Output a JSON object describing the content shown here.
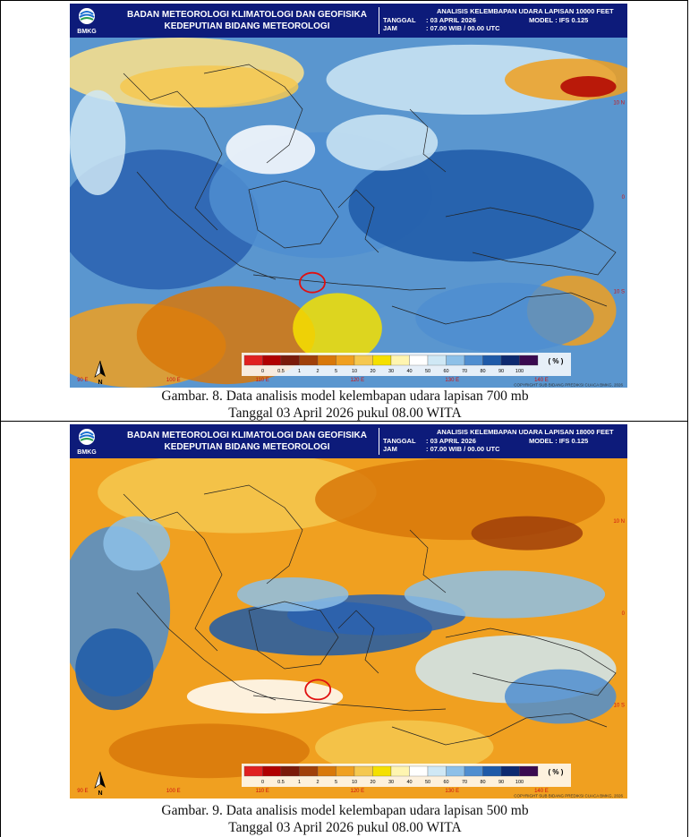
{
  "panels": [
    {
      "agency_line1": "BADAN METEOROLOGI KLIMATOLOGI DAN GEOFISIKA",
      "agency_line2": "KEDEPUTIAN BIDANG METEOROLOGI",
      "logo_text": "BMKG",
      "product": "ANALISIS KELEMBAPAN UDARA LAPISAN 10000 FEET",
      "date_label": "TANGGAL",
      "date_value": ": 03 APRIL 2026",
      "model_label": "MODEL",
      "model_value": ": IFS 0.125",
      "time_label": "JAM",
      "time_value": ": 07.00 WIB / 00.00 UTC",
      "unit": "( % )",
      "copyright": "COPYRIGHT SUB BIDANG PREDIKSI CUACA BMKG, 2026",
      "north": "N",
      "lon_labels": [
        "90 E",
        "100 E",
        "110 E",
        "120 E",
        "130 E",
        "140 E"
      ],
      "lat_labels": [
        "10 N",
        "0",
        "10 S"
      ],
      "legend_ticks": [
        "0",
        "0.5",
        "1",
        "2",
        "5",
        "10",
        "20",
        "30",
        "40",
        "50",
        "60",
        "70",
        "80",
        "90",
        "100"
      ],
      "caption_line1": "Gambar. 8. Data analisis model kelembapan udara lapisan 700 mb",
      "caption_line2": "Tanggal 03 April 2026 pukul 08.00 WITA"
    },
    {
      "agency_line1": "BADAN METEOROLOGI KLIMATOLOGI DAN GEOFISIKA",
      "agency_line2": "KEDEPUTIAN BIDANG METEOROLOGI",
      "logo_text": "BMKG",
      "product": "ANALISIS KELEMBAPAN UDARA LAPISAN 18000 FEET",
      "date_label": "TANGGAL",
      "date_value": ": 03 APRIL 2026",
      "model_label": "MODEL",
      "model_value": ": IFS 0.125",
      "time_label": "JAM",
      "time_value": ": 07.00 WIB / 00.00 UTC",
      "unit": "( % )",
      "copyright": "COPYRIGHT SUB BIDANG PREDIKSI CUACA BMKG, 2026",
      "north": "N",
      "lon_labels": [
        "90 E",
        "100 E",
        "110 E",
        "120 E",
        "130 E",
        "140 E"
      ],
      "lat_labels": [
        "10 N",
        "0",
        "10 S"
      ],
      "legend_ticks": [
        "0",
        "0.5",
        "1",
        "2",
        "5",
        "10",
        "20",
        "30",
        "40",
        "50",
        "60",
        "70",
        "80",
        "90",
        "100"
      ],
      "caption_line1": "Gambar. 9. Data analisis model kelembapan udara lapisan 500 mb",
      "caption_line2": "Tanggal 03 April 2026 pukul 08.00 WITA"
    }
  ],
  "colors": {
    "header_bg": "#0d1b7a",
    "legend": [
      "#e02020",
      "#b00000",
      "#7a1a0a",
      "#a0400a",
      "#d8780a",
      "#f0a020",
      "#f5c850",
      "#f5e000",
      "#fff5b0",
      "#ffffff",
      "#cfe8f5",
      "#8dc0e8",
      "#4f8ed0",
      "#1e5aa8",
      "#0d2a70",
      "#3a0a50"
    ],
    "marker": "#e01010"
  }
}
